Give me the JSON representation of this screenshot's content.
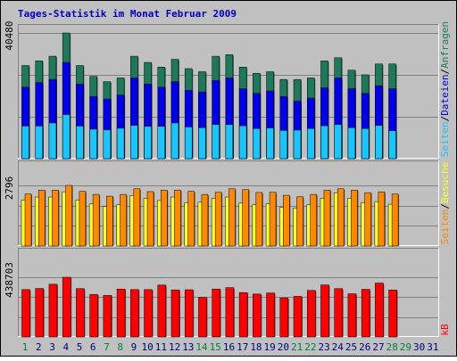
{
  "title": "Tages-Statistik im Monat Februar 2009",
  "colors": {
    "background": "#c0c0c0",
    "title": "#0000c0",
    "anfragen": "#1a7a5a",
    "dateien": "#0000ee",
    "seiten": "#18c6ff",
    "besuche": "#ff8800",
    "besuche_seiten": "#ffff22",
    "kb": "#ff0000",
    "day_weekday": "#000080",
    "day_weekend": "#008040"
  },
  "chart_data": [
    {
      "type": "bar",
      "panel": "requests",
      "ylim_label": "40480",
      "categories": [
        "1",
        "2",
        "3",
        "4",
        "5",
        "6",
        "7",
        "8",
        "9",
        "10",
        "11",
        "12",
        "13",
        "14",
        "15",
        "16",
        "17",
        "18",
        "19",
        "20",
        "21",
        "22",
        "23",
        "24",
        "25",
        "26",
        "27",
        "28",
        "29",
        "30",
        "31"
      ],
      "series": [
        {
          "name": "Anfragen",
          "values": [
            30000,
            31500,
            33000,
            40480,
            30000,
            26500,
            24800,
            26000,
            33000,
            31000,
            29500,
            32000,
            29000,
            28000,
            33000,
            33500,
            29500,
            27500,
            28000,
            25500,
            25500,
            26000,
            31500,
            32500,
            28500,
            27000,
            30500,
            30500,
            null,
            null,
            null
          ]
        },
        {
          "name": "Dateien",
          "values": [
            23000,
            24500,
            25500,
            31000,
            24000,
            20000,
            19200,
            20500,
            26000,
            24000,
            23000,
            24800,
            22000,
            21500,
            25200,
            26000,
            22500,
            21000,
            21800,
            20000,
            18500,
            19500,
            22800,
            26000,
            22500,
            21000,
            23500,
            22500,
            null,
            null,
            null
          ]
        },
        {
          "name": "Seiten",
          "values": [
            10500,
            10500,
            11500,
            14200,
            10500,
            9500,
            9300,
            9800,
            10700,
            10400,
            10400,
            11500,
            10200,
            10000,
            11000,
            11000,
            10600,
            9700,
            9900,
            9100,
            9200,
            9700,
            10600,
            11000,
            10000,
            9700,
            10700,
            9000,
            null,
            null,
            null
          ]
        }
      ],
      "axis_labels": [
        "Anfragen",
        "Dateien",
        "Seiten"
      ]
    },
    {
      "type": "bar",
      "panel": "visits",
      "ylim_label": "2796",
      "categories": [
        "1",
        "2",
        "3",
        "4",
        "5",
        "6",
        "7",
        "8",
        "9",
        "10",
        "11",
        "12",
        "13",
        "14",
        "15",
        "16",
        "17",
        "18",
        "19",
        "20",
        "21",
        "22",
        "23",
        "24",
        "25",
        "26",
        "27",
        "28",
        "29",
        "30",
        "31"
      ],
      "series": [
        {
          "name": "Seiten",
          "values": [
            2120,
            2260,
            2260,
            2500,
            2120,
            1940,
            1820,
            1900,
            2330,
            2200,
            2100,
            2260,
            2000,
            2020,
            2200,
            2260,
            1980,
            1900,
            1950,
            1780,
            1750,
            1900,
            2200,
            2460,
            2200,
            2000,
            2050,
            1930,
            null,
            null,
            null
          ]
        },
        {
          "name": "Besuche",
          "values": [
            2400,
            2580,
            2580,
            2796,
            2520,
            2380,
            2300,
            2380,
            2640,
            2510,
            2580,
            2580,
            2520,
            2380,
            2480,
            2640,
            2600,
            2470,
            2480,
            2340,
            2270,
            2380,
            2580,
            2640,
            2580,
            2460,
            2500,
            2400,
            null,
            null,
            null
          ]
        }
      ],
      "axis_labels": [
        "Seiten",
        "Besuche"
      ]
    },
    {
      "type": "bar",
      "panel": "kb",
      "ylim_label": "438703",
      "categories": [
        "1",
        "2",
        "3",
        "4",
        "5",
        "6",
        "7",
        "8",
        "9",
        "10",
        "11",
        "12",
        "13",
        "14",
        "15",
        "16",
        "17",
        "18",
        "19",
        "20",
        "21",
        "22",
        "23",
        "24",
        "25",
        "26",
        "27",
        "28",
        "29",
        "30",
        "31"
      ],
      "series": [
        {
          "name": "kB",
          "values": [
            348000,
            356000,
            387000,
            438703,
            355000,
            312000,
            305000,
            352000,
            348000,
            348000,
            381000,
            345000,
            347000,
            291000,
            352000,
            362000,
            326000,
            315000,
            323000,
            287000,
            298000,
            342000,
            382000,
            355000,
            317000,
            350000,
            396000,
            345000,
            null,
            null,
            null
          ]
        }
      ],
      "axis_labels": [
        "kB"
      ]
    }
  ],
  "weekend_days": [
    1,
    7,
    8,
    14,
    15,
    21,
    22,
    28,
    29
  ]
}
